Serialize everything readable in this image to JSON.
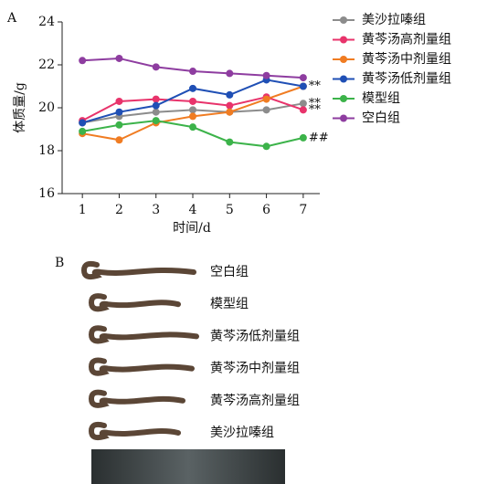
{
  "panel_label": "A",
  "chart_data": {
    "type": "line",
    "x": [
      1,
      2,
      3,
      4,
      5,
      6,
      7
    ],
    "xlim": [
      0.45,
      7.45
    ],
    "xticks": [
      1,
      2,
      3,
      4,
      5,
      6,
      7
    ],
    "ylim": [
      16,
      24
    ],
    "yticks": [
      16,
      18,
      20,
      22,
      24
    ],
    "x_label": "时间/d",
    "y_label": "体质量/g",
    "series": [
      {
        "name": "美沙拉嗪组",
        "color": "#8c8c8c",
        "values": [
          19.3,
          19.6,
          19.8,
          19.9,
          19.8,
          19.9,
          20.2
        ],
        "end_label": "**"
      },
      {
        "name": "黄芩汤高剂量组",
        "color": "#e8336b",
        "values": [
          19.4,
          20.3,
          20.4,
          20.3,
          20.1,
          20.5,
          19.9
        ],
        "end_label": "**"
      },
      {
        "name": "黄芩汤中剂量组",
        "color": "#f07c22",
        "values": [
          18.8,
          18.5,
          19.3,
          19.6,
          19.8,
          20.4,
          21.0
        ]
      },
      {
        "name": "黄芩汤低剂量组",
        "color": "#1f4fb5",
        "values": [
          19.3,
          19.8,
          20.1,
          20.9,
          20.6,
          21.3,
          21.0
        ],
        "end_label": "**"
      },
      {
        "name": "模型组",
        "color": "#3cb34a",
        "values": [
          18.9,
          19.2,
          19.4,
          19.1,
          18.4,
          18.2,
          18.6
        ],
        "end_label": "##"
      },
      {
        "name": "空白组",
        "color": "#8e3da0",
        "values": [
          22.2,
          22.3,
          21.9,
          21.7,
          21.6,
          21.5,
          21.4
        ]
      }
    ]
  },
  "panel_b": {
    "label": "B",
    "items": [
      "空白组",
      "模型组",
      "黄芩汤低剂量组",
      "黄芩汤中剂量组",
      "黄芩汤高剂量组",
      "美沙拉嗪组"
    ]
  }
}
